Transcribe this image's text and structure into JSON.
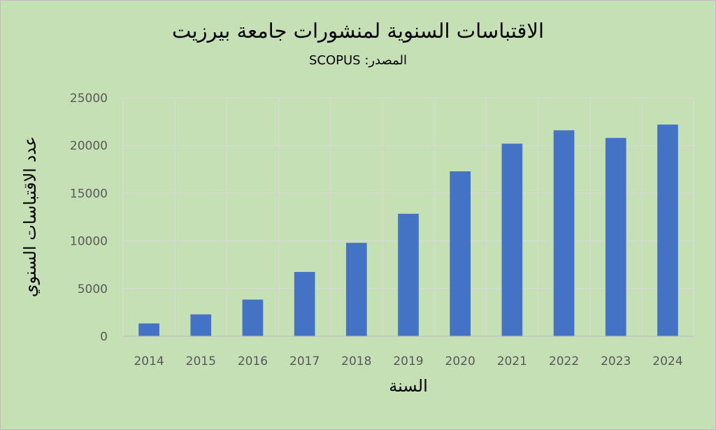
{
  "chart_data": {
    "type": "bar",
    "title": "الاقتباسات السنوية لمنشورات جامعة بيرزيت",
    "subtitle": "المصدر: SCOPUS",
    "xlabel": "السنة",
    "ylabel": "عدد الاقتباسات السنوي",
    "categories": [
      "2014",
      "2015",
      "2016",
      "2017",
      "2018",
      "2019",
      "2020",
      "2021",
      "2022",
      "2023",
      "2024"
    ],
    "values": [
      1350,
      2300,
      3850,
      6750,
      9800,
      12850,
      17300,
      20200,
      21600,
      20800,
      22200
    ],
    "ylim": [
      0,
      25000
    ],
    "yticks": [
      "0",
      "5000",
      "10000",
      "15000",
      "20000",
      "25000"
    ],
    "grid": true,
    "legend": "none",
    "colors": {
      "background": "#c5e0b4",
      "bar": "#4472c4",
      "grid": "#d9d9d9",
      "axis": "#bfbfbf",
      "tick_text": "#595959",
      "title_text": "#000000"
    }
  }
}
